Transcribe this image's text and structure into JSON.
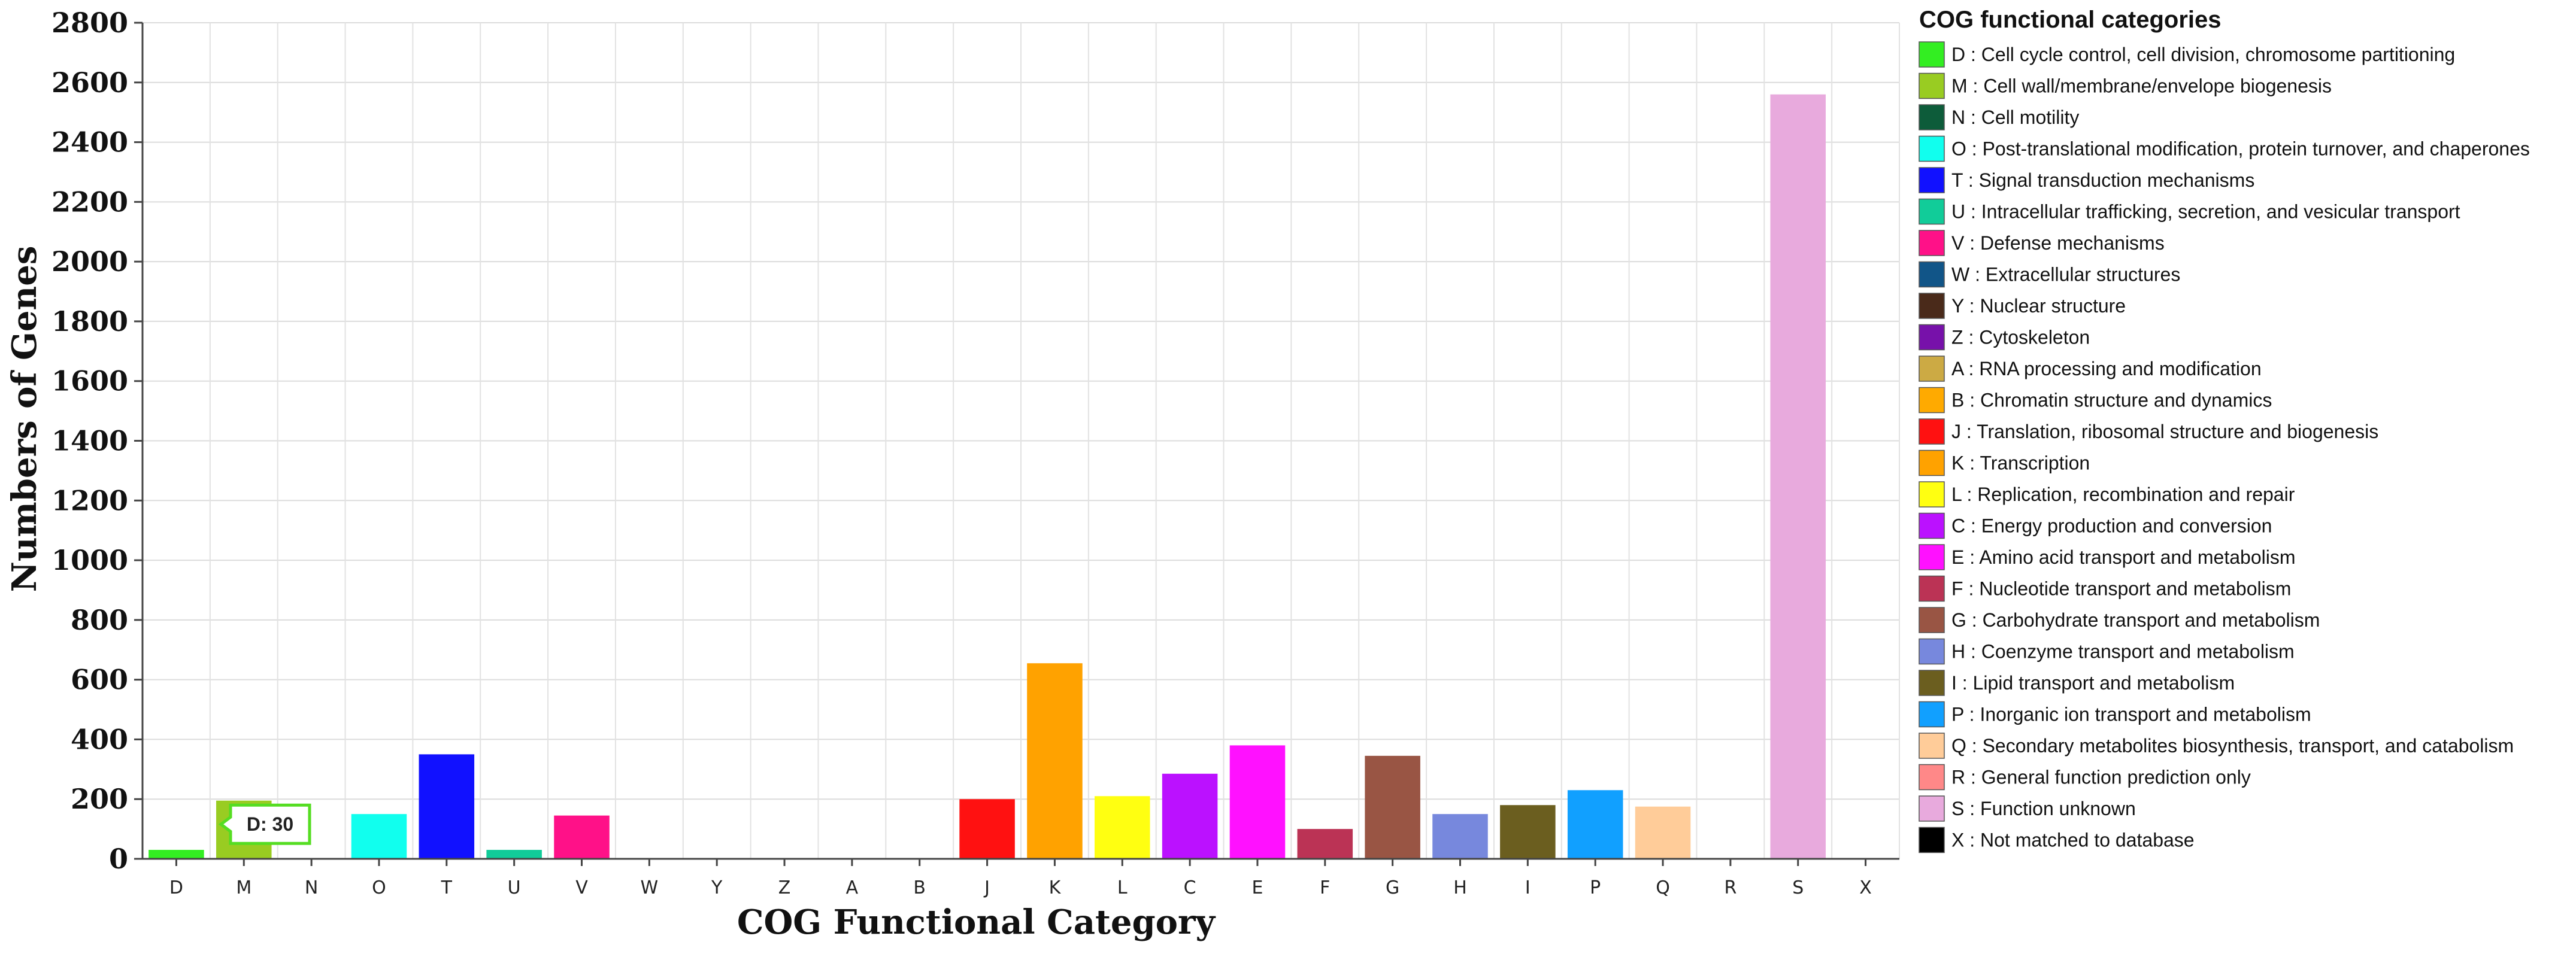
{
  "chart_data": {
    "type": "bar",
    "xlabel": "COG Functional Category",
    "ylabel": "Numbers of Genes",
    "ylim": [
      0,
      2800
    ],
    "yticks": [
      0,
      200,
      400,
      600,
      800,
      1000,
      1200,
      1400,
      1600,
      1800,
      2000,
      2200,
      2400,
      2600,
      2800
    ],
    "grid": true,
    "legend_position": "right",
    "categories": [
      "D",
      "M",
      "N",
      "O",
      "T",
      "U",
      "V",
      "W",
      "Y",
      "Z",
      "A",
      "B",
      "J",
      "K",
      "L",
      "C",
      "E",
      "F",
      "G",
      "H",
      "I",
      "P",
      "Q",
      "R",
      "S",
      "X"
    ],
    "values": [
      30,
      195,
      0,
      150,
      350,
      30,
      145,
      0,
      0,
      0,
      0,
      0,
      200,
      655,
      210,
      285,
      380,
      100,
      345,
      150,
      180,
      230,
      175,
      0,
      2560,
      0
    ],
    "colors": [
      "#33ee22",
      "#99cc22",
      "#0d5c3a",
      "#11ffee",
      "#1111ff",
      "#11cc99",
      "#ff1188",
      "#115588",
      "#4a2a1a",
      "#7711aa",
      "#ccaa44",
      "#ffaa00",
      "#ff1111",
      "#ffa200",
      "#ffff11",
      "#bb11ff",
      "#ff11ff",
      "#bb3355",
      "#995544",
      "#7788dd",
      "#6b5e1f",
      "#11a0ff",
      "#ffcc99",
      "#ff8888",
      "#e8aadd",
      "#000000"
    ],
    "legend": {
      "title": "COG functional categories",
      "entries": [
        "D : Cell cycle control, cell division, chromosome partitioning",
        "M : Cell wall/membrane/envelope biogenesis",
        "N : Cell motility",
        "O : Post-translational modification, protein turnover, and chaperones",
        "T : Signal transduction mechanisms",
        "U : Intracellular trafficking, secretion, and vesicular transport",
        "V : Defense mechanisms",
        "W : Extracellular structures",
        "Y : Nuclear structure",
        "Z : Cytoskeleton",
        "A : RNA processing and modification",
        "B : Chromatin structure and dynamics",
        "J : Translation, ribosomal structure and biogenesis",
        "K : Transcription",
        "L : Replication, recombination and repair",
        "C : Energy production and conversion",
        "E : Amino acid transport and metabolism",
        "F : Nucleotide transport and metabolism",
        "G : Carbohydrate transport and metabolism",
        "H : Coenzyme transport and metabolism",
        "I : Lipid transport and metabolism",
        "P : Inorganic ion transport and metabolism",
        "Q : Secondary metabolites biosynthesis, transport, and catabolism",
        "R : General function prediction only",
        "S : Function unknown",
        "X : Not matched to database"
      ]
    },
    "tooltip": {
      "category": "D",
      "text": "D: 30"
    }
  }
}
